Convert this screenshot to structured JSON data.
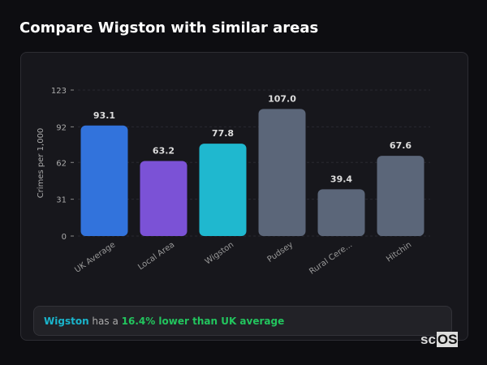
{
  "title": "Compare Wigston with similar areas",
  "summary": {
    "area": "Wigston",
    "middle": " has a ",
    "highlight": "16.4% lower than UK average"
  },
  "logo": {
    "prefix": "sc",
    "boxed": "OS"
  },
  "colors": {
    "accent": "#1ab5cc",
    "highlight": "#22c55e"
  },
  "chart_data": {
    "type": "bar",
    "ylabel": "Crimes per 1,000",
    "ylim": [
      0,
      123
    ],
    "yticks": [
      0,
      31,
      62,
      92,
      123
    ],
    "categories": [
      "UK Average",
      "Local Area",
      "Wigston",
      "Pudsey",
      "Rural Cere...",
      "Hitchin"
    ],
    "values": [
      93.1,
      63.2,
      77.8,
      107.0,
      39.4,
      67.6
    ],
    "value_labels": [
      "93.1",
      "63.2",
      "77.8",
      "107.0",
      "39.4",
      "67.6"
    ],
    "bar_colors": [
      "#3273dc",
      "#7b52d6",
      "#1fb8cf",
      "#5b6679",
      "#5b6679",
      "#5b6679"
    ],
    "grid": true
  }
}
